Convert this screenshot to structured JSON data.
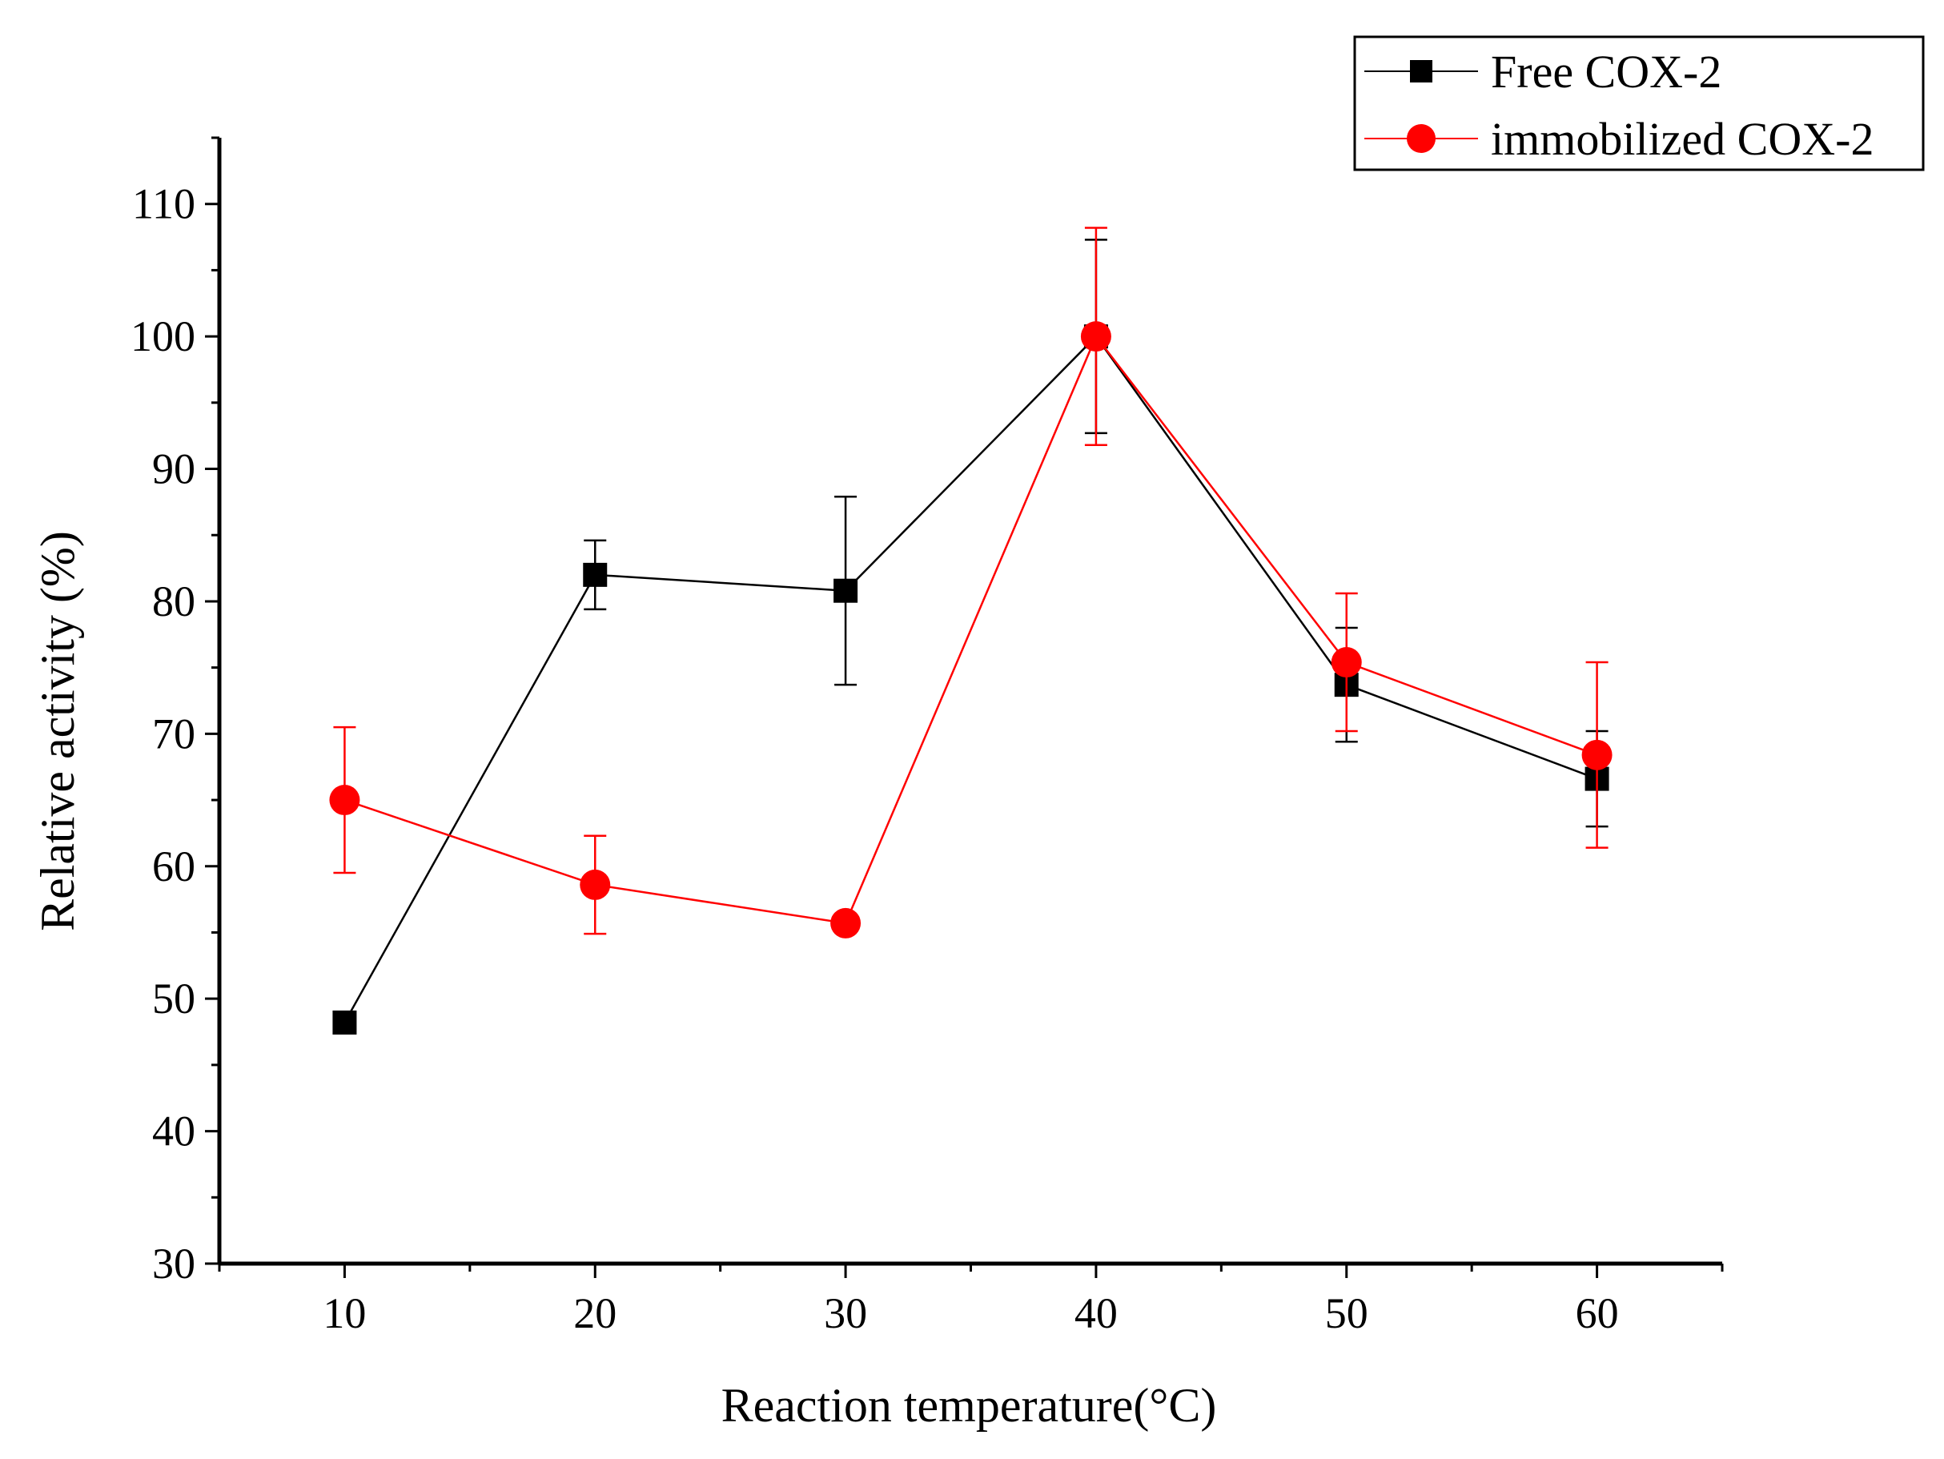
{
  "chart_data": {
    "type": "line",
    "title": "",
    "xlabel": "Reaction temperature(°C)",
    "ylabel": "Relative activity (%)",
    "x": [
      10,
      20,
      30,
      40,
      50,
      60
    ],
    "xlim": [
      5,
      65
    ],
    "ylim": [
      30,
      115
    ],
    "x_ticks": [
      10,
      20,
      30,
      40,
      50,
      60
    ],
    "y_ticks": [
      30,
      40,
      50,
      60,
      70,
      80,
      90,
      100,
      110
    ],
    "grid": false,
    "legend_position": "top-right",
    "series": [
      {
        "name": "Free COX-2",
        "color": "#000000",
        "marker": "square",
        "values": [
          48.2,
          82.0,
          80.8,
          100.0,
          73.7,
          66.6
        ],
        "errors": [
          null,
          2.6,
          7.1,
          7.3,
          4.3,
          3.6
        ]
      },
      {
        "name": "immobilized COX-2",
        "color": "#ff0000",
        "marker": "circle",
        "values": [
          65.0,
          58.6,
          55.7,
          100.0,
          75.4,
          68.4
        ],
        "errors": [
          5.5,
          3.7,
          null,
          8.2,
          5.2,
          7.0
        ]
      }
    ]
  }
}
